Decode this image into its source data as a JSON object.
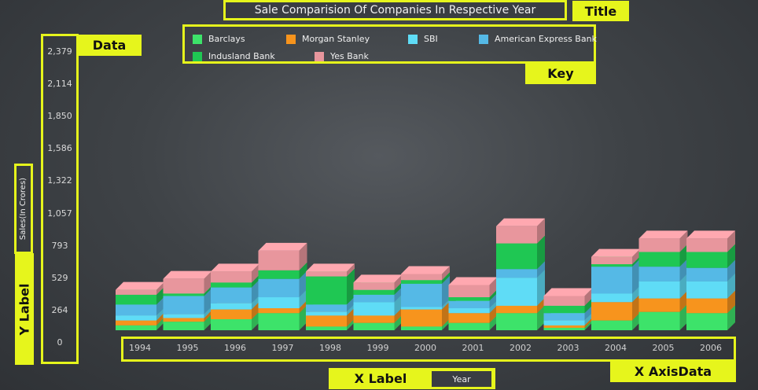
{
  "chart_data": {
    "type": "bar",
    "stacked": true,
    "title": "Sale Comparision Of Companies In Respective Year",
    "xlabel": "Year",
    "ylabel": "Sales(In Crores)",
    "categories": [
      "1994",
      "1995",
      "1996",
      "1997",
      "1998",
      "1999",
      "2000",
      "2001",
      "2002",
      "2003",
      "2004",
      "2005",
      "2006"
    ],
    "y_ticks": [
      "0",
      "264",
      "529",
      "793",
      "1,057",
      "1,322",
      "1,586",
      "1,850",
      "2,114",
      "2,379"
    ],
    "ylim": [
      0,
      2379
    ],
    "legend_position": "top",
    "series": [
      {
        "name": "Barclays",
        "color": "#3de36a",
        "values": [
          40,
          70,
          90,
          140,
          30,
          60,
          30,
          60,
          140,
          20,
          80,
          150,
          140
        ]
      },
      {
        "name": "Morgan Stanley",
        "color": "#f7941d",
        "values": [
          40,
          30,
          80,
          40,
          90,
          60,
          140,
          80,
          60,
          20,
          150,
          110,
          120
        ]
      },
      {
        "name": "SBI",
        "color": "#5fdcf6",
        "values": [
          40,
          30,
          50,
          90,
          30,
          110,
          20,
          40,
          230,
          40,
          70,
          140,
          140
        ]
      },
      {
        "name": "American Express Bank",
        "color": "#55b9e6",
        "values": [
          90,
          150,
          130,
          150,
          60,
          60,
          190,
          60,
          70,
          60,
          220,
          120,
          110
        ]
      },
      {
        "name": "Indusland Bank",
        "color": "#1fc753",
        "values": [
          80,
          20,
          40,
          70,
          230,
          40,
          30,
          30,
          210,
          60,
          20,
          120,
          130
        ]
      },
      {
        "name": "Yes Bank",
        "color": "#e8969d",
        "values": [
          40,
          120,
          90,
          160,
          40,
          60,
          50,
          100,
          140,
          80,
          60,
          110,
          110
        ]
      }
    ]
  },
  "annotations": {
    "title": "Title",
    "key": "Key",
    "data": "Data",
    "y_label": "Y Label",
    "x_label": "X Label",
    "x_axis_data": "X AxisData"
  }
}
